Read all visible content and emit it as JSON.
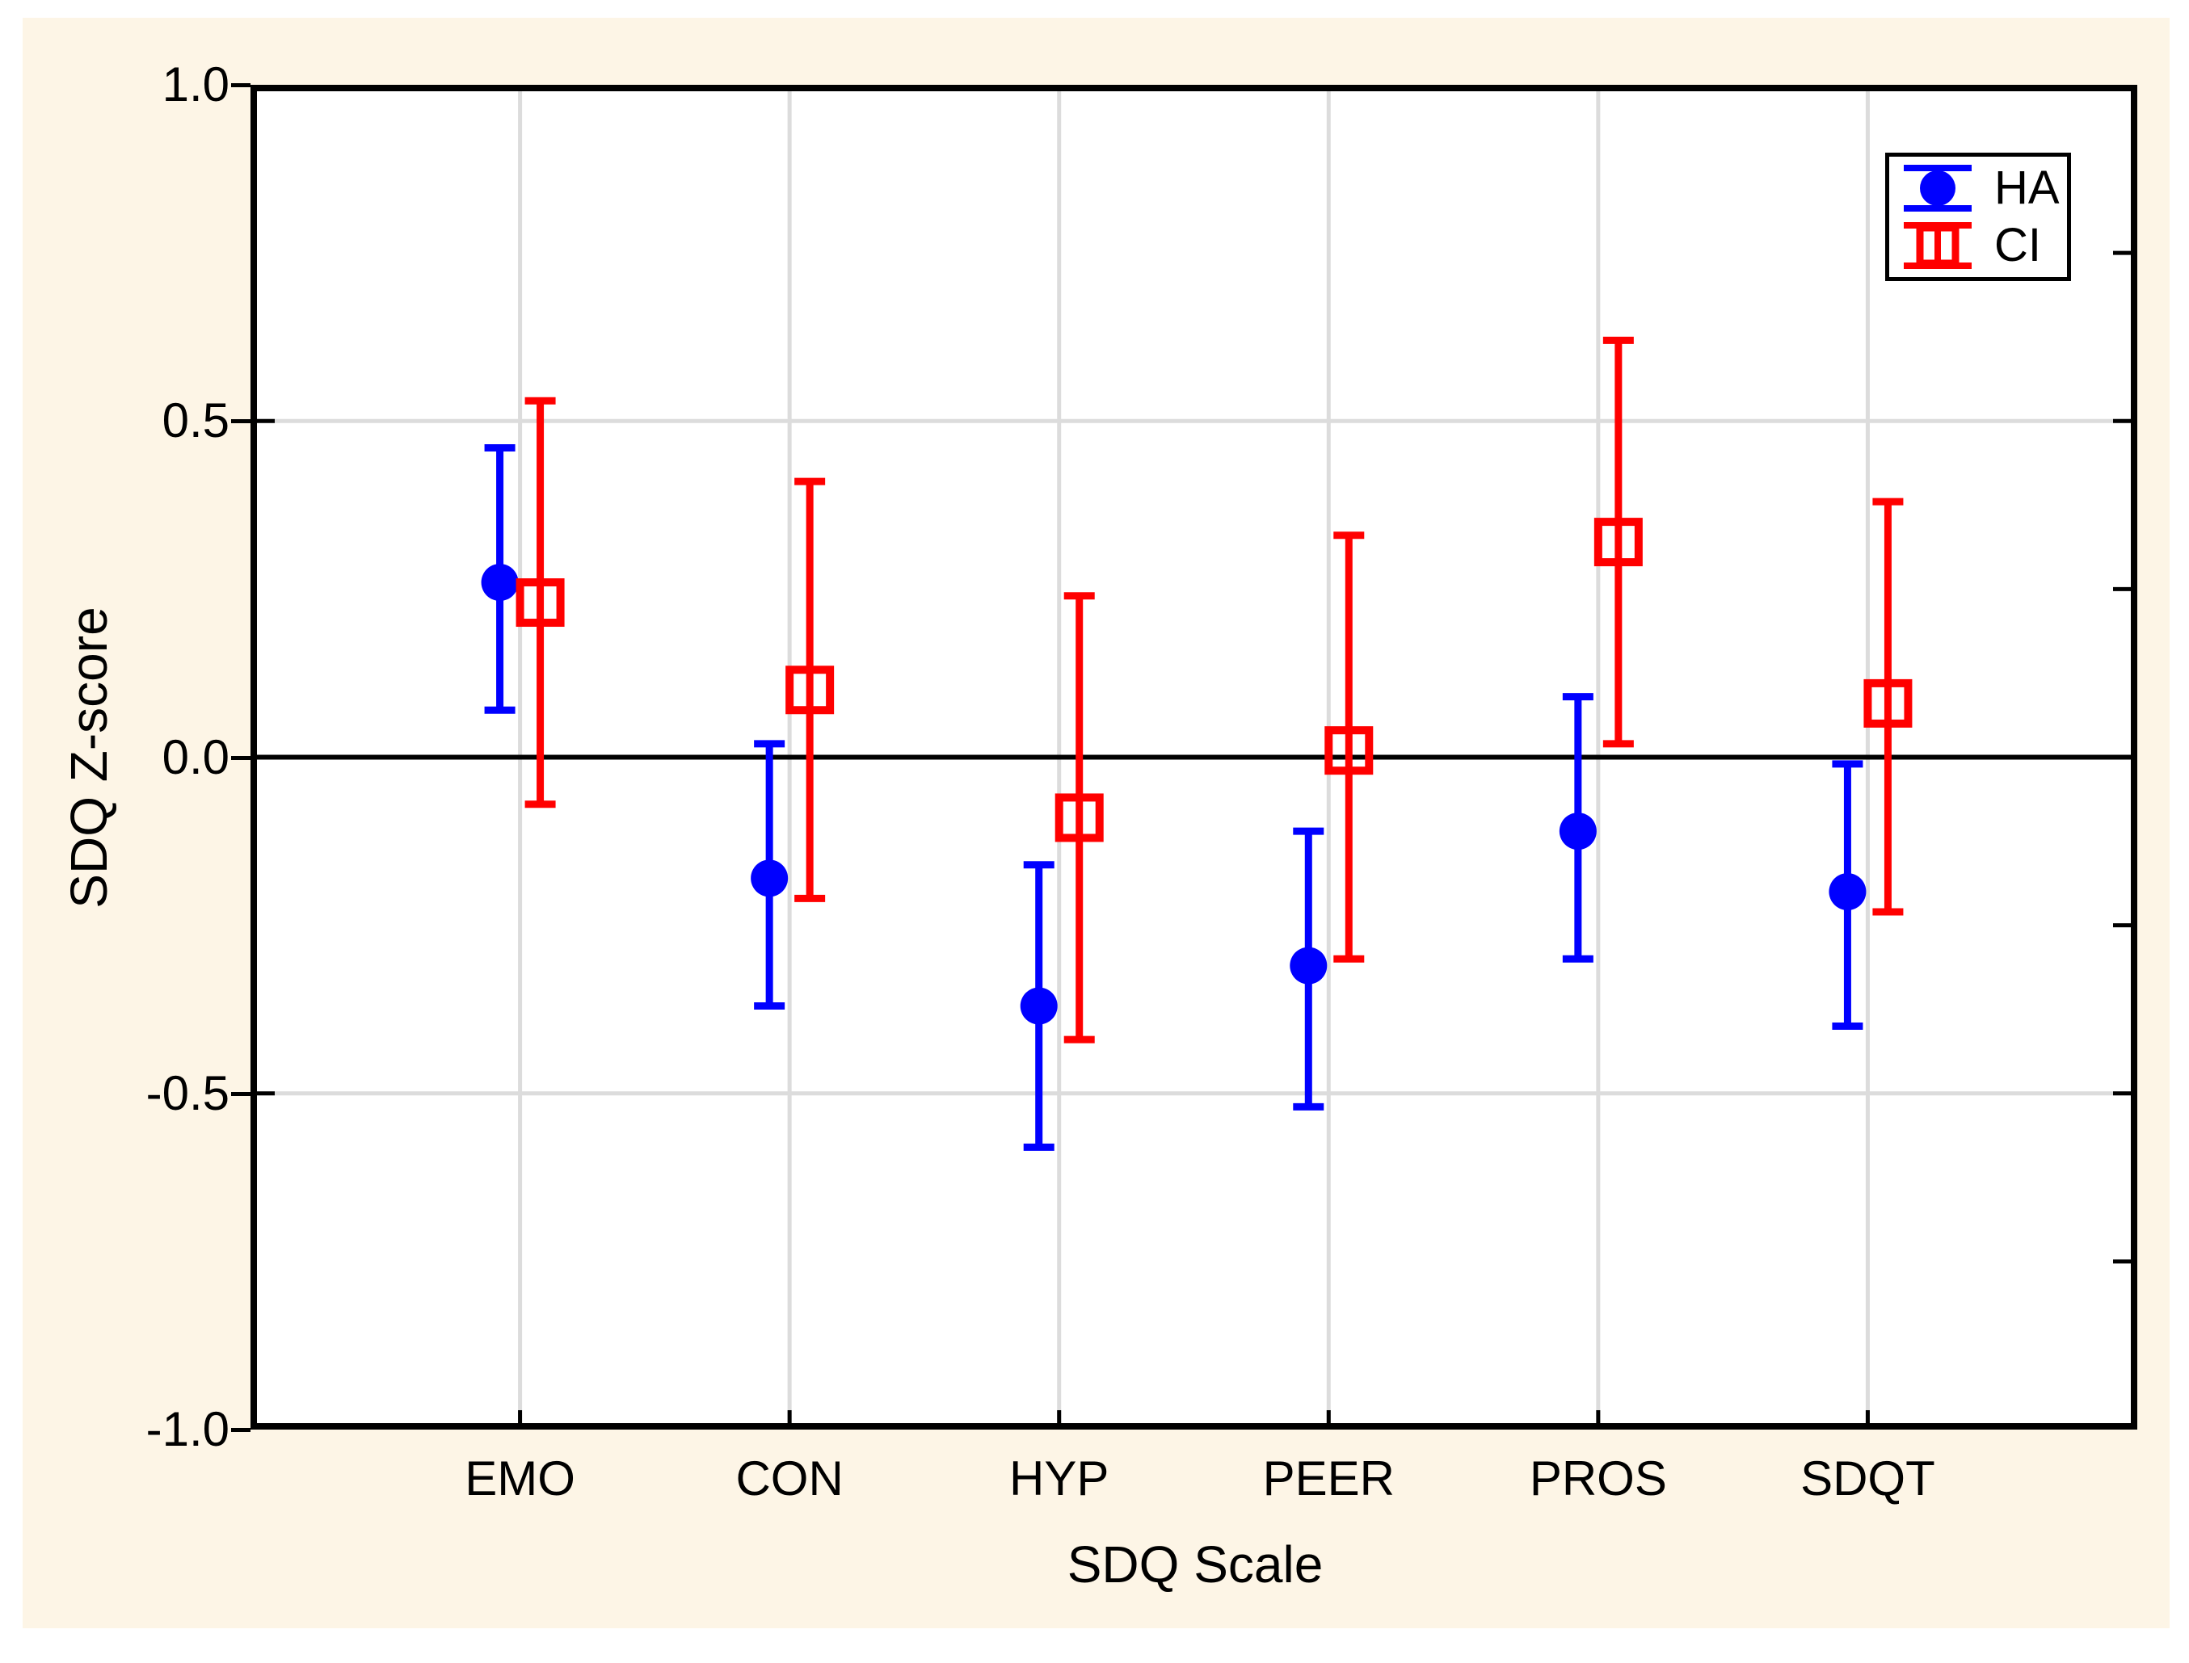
{
  "window": {
    "outer_background": "#FFFFFF"
  },
  "panel": {
    "background": "#FDF5E6",
    "plot_background": "#FFFFFF"
  },
  "chart_data": {
    "type": "scatter",
    "subtype": "point-plot-with-error-bars",
    "title": "",
    "xlabel": "SDQ Scale",
    "ylabel": "SDQ Z-score",
    "categories": [
      "EMO",
      "CON",
      "HYP",
      "PEER",
      "PROS",
      "SDQT"
    ],
    "ylim": [
      -1.0,
      1.0
    ],
    "yticks": [
      {
        "value": 1.0,
        "label": "1.0"
      },
      {
        "value": 0.5,
        "label": "0.5"
      },
      {
        "value": 0.0,
        "label": "0.0"
      },
      {
        "value": -0.5,
        "label": "-0.5"
      },
      {
        "value": -1.0,
        "label": "-1.0"
      }
    ],
    "right_axis_minor_ticks": [
      0.75,
      0.5,
      0.25,
      -0.25,
      -0.5,
      -0.75
    ],
    "horizontal_gridlines": [
      0.5,
      -0.5
    ],
    "zero_line_value": 0.0,
    "grid": true,
    "grid_color": "#DCDCDC",
    "axis_color": "#000000",
    "legend_position": "top-right",
    "series": [
      {
        "name": "HA",
        "marker": "filled-circle",
        "color": "#0000FF",
        "values": [
          0.26,
          -0.18,
          -0.37,
          -0.31,
          -0.11,
          -0.2
        ],
        "lower": [
          0.07,
          -0.37,
          -0.58,
          -0.52,
          -0.3,
          -0.4
        ],
        "upper": [
          0.46,
          0.02,
          -0.16,
          -0.11,
          0.09,
          -0.01
        ]
      },
      {
        "name": "CI",
        "marker": "open-square",
        "color": "#FF0000",
        "values": [
          0.23,
          0.1,
          -0.09,
          0.01,
          0.32,
          0.08
        ],
        "lower": [
          -0.07,
          -0.21,
          -0.42,
          -0.3,
          0.02,
          -0.23
        ],
        "upper": [
          0.53,
          0.41,
          0.24,
          0.33,
          0.62,
          0.38
        ]
      }
    ]
  }
}
